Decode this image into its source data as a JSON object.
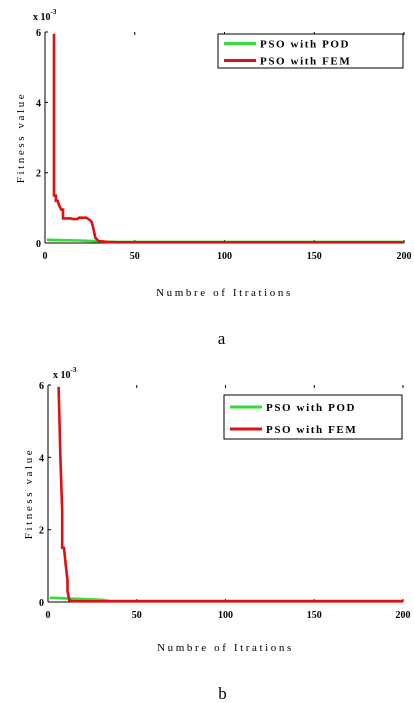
{
  "chart_data": [
    {
      "type": "line",
      "panel_label": "a",
      "xlabel": "Numbre of Itrations",
      "ylabel": "Fitness value",
      "y_multiplier": "x 10",
      "y_multiplier_exp": "-3",
      "xlim": [
        0,
        200
      ],
      "ylim": [
        0,
        6
      ],
      "x_ticks": [
        "0",
        "50",
        "100",
        "150",
        "200"
      ],
      "y_ticks": [
        "0",
        "2",
        "4",
        "6"
      ],
      "legend_position": "top-right",
      "series": [
        {
          "name": "PSO with POD",
          "color": "#33dd33",
          "x": [
            1,
            10,
            20,
            28,
            35,
            200
          ],
          "y": [
            0.09,
            0.08,
            0.07,
            0.05,
            0.03,
            0.03
          ]
        },
        {
          "name": "PSO with FEM",
          "color": "#dd1111",
          "x": [
            5,
            5,
            6,
            6,
            7,
            8,
            9,
            10,
            10,
            14,
            16,
            18,
            19,
            23,
            25,
            26,
            27,
            28,
            30,
            35,
            40,
            200
          ],
          "y": [
            5.95,
            1.35,
            1.35,
            1.2,
            1.2,
            1.05,
            0.95,
            0.95,
            0.7,
            0.7,
            0.68,
            0.68,
            0.72,
            0.72,
            0.65,
            0.6,
            0.4,
            0.15,
            0.05,
            0.03,
            0.02,
            0.02
          ]
        }
      ]
    },
    {
      "type": "line",
      "panel_label": "b",
      "xlabel": "Numbre of Itrations",
      "ylabel": "Fitness value",
      "y_multiplier": "x 10",
      "y_multiplier_exp": "-3",
      "xlim": [
        0,
        200
      ],
      "ylim": [
        0,
        6
      ],
      "x_ticks": [
        "0",
        "50",
        "100",
        "150",
        "200"
      ],
      "y_ticks": [
        "0",
        "2",
        "4",
        "6"
      ],
      "legend_position": "top-right",
      "series": [
        {
          "name": "PSO with POD",
          "color": "#33dd33",
          "x": [
            1,
            10,
            20,
            30,
            35,
            200
          ],
          "y": [
            0.12,
            0.1,
            0.08,
            0.06,
            0.03,
            0.03
          ]
        },
        {
          "name": "PSO with FEM",
          "color": "#dd1111",
          "x": [
            6,
            7,
            8,
            8,
            9,
            10,
            11,
            11,
            12,
            14,
            200
          ],
          "y": [
            5.95,
            4.0,
            2.5,
            1.5,
            1.5,
            1.0,
            0.6,
            0.3,
            0.05,
            0.02,
            0.02
          ]
        }
      ]
    }
  ]
}
